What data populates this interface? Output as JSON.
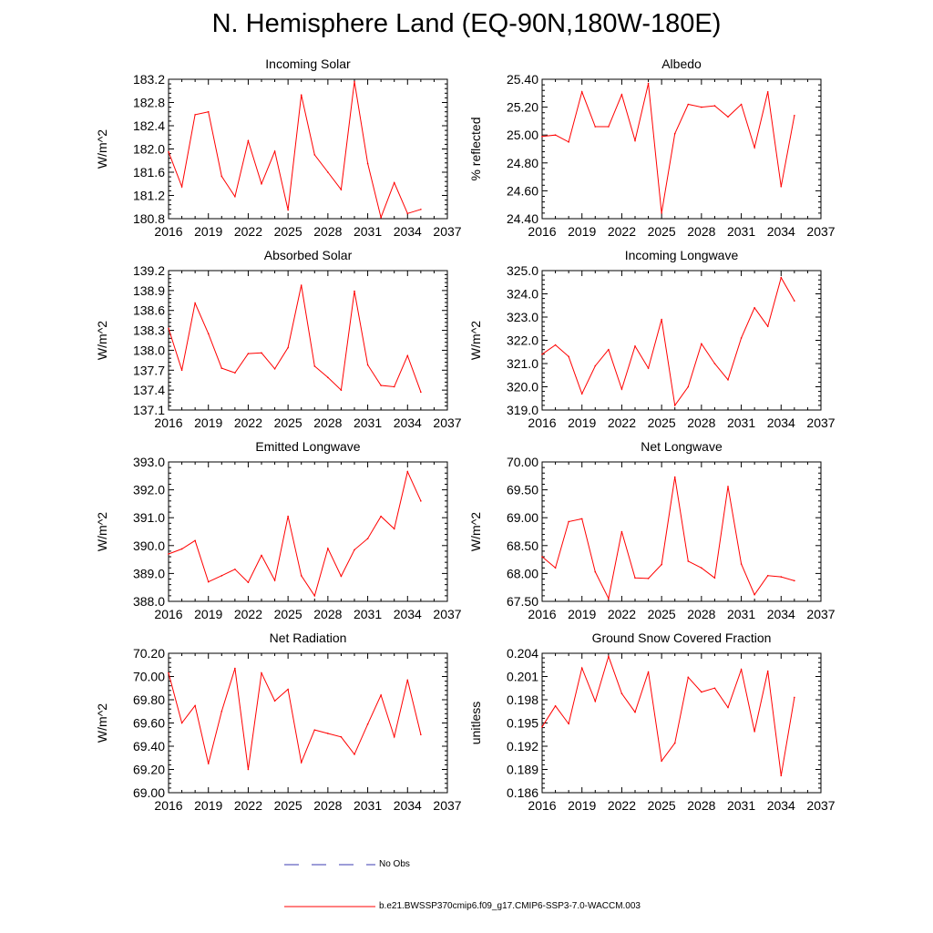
{
  "page": {
    "title": "N. Hemisphere Land (EQ-90N,180W-180E)"
  },
  "legend": {
    "no_obs_label": "No Obs",
    "no_obs_color": "#3b3bb0",
    "model_label": "b.e21.BWSSP370cmip6.f09_g17.CMIP6-SSP3-7.0-WACCM.003",
    "model_color": "#ff0000"
  },
  "chart_data": [
    {
      "type": "line",
      "title": "Incoming Solar",
      "ylabel": "W/m^2",
      "xlim": [
        2016,
        2037
      ],
      "xticks": [
        "2016",
        "2019",
        "2022",
        "2025",
        "2028",
        "2031",
        "2034",
        "2037"
      ],
      "ylim": [
        180.8,
        183.2
      ],
      "yticks": [
        "180.8",
        "181.2",
        "181.6",
        "182.0",
        "182.4",
        "182.8",
        "183.2"
      ],
      "x": [
        2016,
        2017,
        2018,
        2019,
        2020,
        2021,
        2022,
        2023,
        2024,
        2025,
        2026,
        2027,
        2028,
        2029,
        2030,
        2031,
        2032,
        2033,
        2034,
        2035
      ],
      "series": [
        {
          "values": [
            181.95,
            181.35,
            182.59,
            182.64,
            181.53,
            181.18,
            182.14,
            181.4,
            181.96,
            180.95,
            182.93,
            181.9,
            181.6,
            181.3,
            183.16,
            181.75,
            180.82,
            181.42,
            180.89,
            180.96
          ]
        }
      ]
    },
    {
      "type": "line",
      "title": "Albedo",
      "ylabel": "% reflected",
      "xlim": [
        2016,
        2037
      ],
      "xticks": [
        "2016",
        "2019",
        "2022",
        "2025",
        "2028",
        "2031",
        "2034",
        "2037"
      ],
      "ylim": [
        24.4,
        25.4
      ],
      "yticks": [
        "24.40",
        "24.60",
        "24.80",
        "25.00",
        "25.20",
        "25.40"
      ],
      "x": [
        2016,
        2017,
        2018,
        2019,
        2020,
        2021,
        2022,
        2023,
        2024,
        2025,
        2026,
        2027,
        2028,
        2029,
        2030,
        2031,
        2032,
        2033,
        2034,
        2035
      ],
      "series": [
        {
          "values": [
            24.99,
            25.0,
            24.95,
            25.31,
            25.06,
            25.06,
            25.29,
            24.96,
            25.37,
            24.44,
            25.01,
            25.22,
            25.2,
            25.21,
            25.13,
            25.22,
            24.91,
            25.31,
            24.63,
            25.14
          ]
        }
      ]
    },
    {
      "type": "line",
      "title": "Absorbed Solar",
      "ylabel": "W/m^2",
      "xlim": [
        2016,
        2037
      ],
      "xticks": [
        "2016",
        "2019",
        "2022",
        "2025",
        "2028",
        "2031",
        "2034",
        "2037"
      ],
      "ylim": [
        137.1,
        139.2
      ],
      "yticks": [
        "137.1",
        "137.4",
        "137.7",
        "138.0",
        "138.3",
        "138.6",
        "138.9",
        "139.2"
      ],
      "x": [
        2016,
        2017,
        2018,
        2019,
        2020,
        2021,
        2022,
        2023,
        2024,
        2025,
        2026,
        2027,
        2028,
        2029,
        2030,
        2031,
        2032,
        2033,
        2034,
        2035
      ],
      "series": [
        {
          "values": [
            138.33,
            137.7,
            138.71,
            138.25,
            137.73,
            137.66,
            137.95,
            137.96,
            137.72,
            138.04,
            138.98,
            137.76,
            137.59,
            137.4,
            138.89,
            137.78,
            137.47,
            137.45,
            137.92,
            137.37
          ]
        }
      ]
    },
    {
      "type": "line",
      "title": "Incoming Longwave",
      "ylabel": "W/m^2",
      "xlim": [
        2016,
        2037
      ],
      "xticks": [
        "2016",
        "2019",
        "2022",
        "2025",
        "2028",
        "2031",
        "2034",
        "2037"
      ],
      "ylim": [
        319.0,
        325.0
      ],
      "yticks": [
        "319.0",
        "320.0",
        "321.0",
        "322.0",
        "323.0",
        "324.0",
        "325.0"
      ],
      "x": [
        2016,
        2017,
        2018,
        2019,
        2020,
        2021,
        2022,
        2023,
        2024,
        2025,
        2026,
        2027,
        2028,
        2029,
        2030,
        2031,
        2032,
        2033,
        2034,
        2035
      ],
      "series": [
        {
          "values": [
            321.4,
            321.8,
            321.3,
            319.7,
            320.9,
            321.6,
            319.9,
            321.75,
            320.8,
            322.9,
            319.2,
            320.0,
            321.85,
            321.0,
            320.3,
            322.1,
            323.4,
            322.6,
            324.7,
            323.7
          ]
        }
      ]
    },
    {
      "type": "line",
      "title": "Emitted Longwave",
      "ylabel": "W/m^2",
      "xlim": [
        2016,
        2037
      ],
      "xticks": [
        "2016",
        "2019",
        "2022",
        "2025",
        "2028",
        "2031",
        "2034",
        "2037"
      ],
      "ylim": [
        388.0,
        393.0
      ],
      "yticks": [
        "388.0",
        "389.0",
        "390.0",
        "391.0",
        "392.0",
        "393.0"
      ],
      "x": [
        2016,
        2017,
        2018,
        2019,
        2020,
        2021,
        2022,
        2023,
        2024,
        2025,
        2026,
        2027,
        2028,
        2029,
        2030,
        2031,
        2032,
        2033,
        2034,
        2035
      ],
      "series": [
        {
          "values": [
            389.7,
            389.88,
            390.18,
            388.7,
            388.92,
            389.15,
            388.68,
            389.65,
            388.75,
            391.05,
            388.92,
            388.2,
            389.9,
            388.9,
            389.85,
            390.25,
            391.05,
            390.6,
            392.65,
            391.6
          ]
        }
      ]
    },
    {
      "type": "line",
      "title": "Net Longwave",
      "ylabel": "W/m^2",
      "xlim": [
        2016,
        2037
      ],
      "xticks": [
        "2016",
        "2019",
        "2022",
        "2025",
        "2028",
        "2031",
        "2034",
        "2037"
      ],
      "ylim": [
        67.5,
        70.0
      ],
      "yticks": [
        "67.50",
        "68.00",
        "68.50",
        "69.00",
        "69.50",
        "70.00"
      ],
      "x": [
        2016,
        2017,
        2018,
        2019,
        2020,
        2021,
        2022,
        2023,
        2024,
        2025,
        2026,
        2027,
        2028,
        2029,
        2030,
        2031,
        2032,
        2033,
        2034,
        2035
      ],
      "series": [
        {
          "values": [
            68.3,
            68.1,
            68.93,
            68.98,
            68.03,
            67.55,
            68.75,
            67.92,
            67.91,
            68.16,
            69.73,
            68.22,
            68.1,
            67.92,
            69.56,
            68.17,
            67.62,
            67.96,
            67.94,
            67.87
          ]
        }
      ]
    },
    {
      "type": "line",
      "title": "Net Radiation",
      "ylabel": "W/m^2",
      "xlim": [
        2016,
        2037
      ],
      "xticks": [
        "2016",
        "2019",
        "2022",
        "2025",
        "2028",
        "2031",
        "2034",
        "2037"
      ],
      "ylim": [
        69.0,
        70.2
      ],
      "yticks": [
        "69.00",
        "69.20",
        "69.40",
        "69.60",
        "69.80",
        "70.00",
        "70.20"
      ],
      "x": [
        2016,
        2017,
        2018,
        2019,
        2020,
        2021,
        2022,
        2023,
        2024,
        2025,
        2026,
        2027,
        2028,
        2029,
        2030,
        2031,
        2032,
        2033,
        2034,
        2035
      ],
      "series": [
        {
          "values": [
            70.03,
            69.6,
            69.75,
            69.25,
            69.7,
            70.07,
            69.2,
            70.03,
            69.79,
            69.89,
            69.26,
            69.54,
            69.51,
            69.48,
            69.33,
            69.59,
            69.84,
            69.48,
            69.97,
            69.5
          ]
        }
      ]
    },
    {
      "type": "line",
      "title": "Ground Snow Covered Fraction",
      "ylabel": "unitless",
      "xlim": [
        2016,
        2037
      ],
      "xticks": [
        "2016",
        "2019",
        "2022",
        "2025",
        "2028",
        "2031",
        "2034",
        "2037"
      ],
      "ylim": [
        0.186,
        0.204
      ],
      "yticks": [
        "0.186",
        "0.189",
        "0.192",
        "0.195",
        "0.198",
        "0.201",
        "0.204"
      ],
      "x": [
        2016,
        2017,
        2018,
        2019,
        2020,
        2021,
        2022,
        2023,
        2024,
        2025,
        2026,
        2027,
        2028,
        2029,
        2030,
        2031,
        2032,
        2033,
        2034,
        2035
      ],
      "series": [
        {
          "values": [
            0.1945,
            0.1972,
            0.1949,
            0.2021,
            0.1978,
            0.2036,
            0.1988,
            0.1964,
            0.2016,
            0.1901,
            0.1924,
            0.2009,
            0.199,
            0.1995,
            0.197,
            0.2019,
            0.1939,
            0.2017,
            0.1882,
            0.1983
          ]
        }
      ]
    }
  ]
}
